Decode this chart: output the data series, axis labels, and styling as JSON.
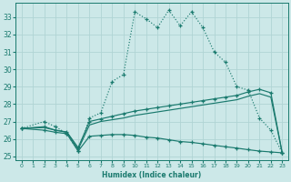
{
  "xlabel": "Humidex (Indice chaleur)",
  "bg_color": "#cce8e8",
  "grid_color": "#b0d4d4",
  "line_color": "#1a7a6e",
  "xlim": [
    -0.5,
    23.5
  ],
  "ylim": [
    24.8,
    33.8
  ],
  "yticks": [
    25,
    26,
    27,
    28,
    29,
    30,
    31,
    32,
    33
  ],
  "xticks": [
    0,
    1,
    2,
    3,
    4,
    5,
    6,
    7,
    8,
    9,
    10,
    11,
    12,
    13,
    14,
    15,
    16,
    17,
    18,
    19,
    20,
    21,
    22,
    23
  ],
  "line1_x": [
    0,
    2,
    3,
    4,
    5,
    6,
    7,
    8,
    9,
    10,
    11,
    12,
    13,
    14,
    15,
    16,
    17,
    18,
    19,
    20,
    21,
    22,
    23
  ],
  "line1_y": [
    26.6,
    27.0,
    26.7,
    26.3,
    25.3,
    27.2,
    27.5,
    29.3,
    29.7,
    33.3,
    32.9,
    32.4,
    33.4,
    32.5,
    33.3,
    32.4,
    31.0,
    30.4,
    29.0,
    28.8,
    27.2,
    26.5,
    25.2
  ],
  "line1_dotted": true,
  "line2_x": [
    0,
    2,
    3,
    4,
    5,
    6,
    7,
    8,
    9,
    10,
    11,
    12,
    13,
    14,
    15,
    16,
    17,
    18,
    19,
    20,
    21,
    22,
    23
  ],
  "line2_y": [
    26.6,
    26.7,
    26.5,
    26.4,
    25.5,
    27.0,
    27.15,
    27.3,
    27.45,
    27.6,
    27.7,
    27.8,
    27.9,
    28.0,
    28.1,
    28.2,
    28.3,
    28.4,
    28.5,
    28.7,
    28.85,
    28.65,
    25.2
  ],
  "line3_x": [
    0,
    2,
    3,
    4,
    5,
    6,
    7,
    8,
    9,
    10,
    11,
    12,
    13,
    14,
    15,
    16,
    17,
    18,
    19,
    20,
    21,
    22,
    23
  ],
  "line3_y": [
    26.6,
    26.65,
    26.5,
    26.38,
    25.4,
    26.8,
    27.0,
    27.1,
    27.2,
    27.35,
    27.45,
    27.55,
    27.65,
    27.75,
    27.85,
    27.95,
    28.05,
    28.15,
    28.25,
    28.45,
    28.6,
    28.4,
    25.2
  ],
  "line4_x": [
    0,
    2,
    3,
    4,
    5,
    6,
    7,
    8,
    9,
    10,
    11,
    12,
    13,
    14,
    15,
    16,
    17,
    18,
    19,
    20,
    21,
    22,
    23
  ],
  "line4_y": [
    26.6,
    26.5,
    26.38,
    26.3,
    25.3,
    26.15,
    26.2,
    26.25,
    26.25,
    26.2,
    26.1,
    26.05,
    25.95,
    25.85,
    25.8,
    25.72,
    25.63,
    25.55,
    25.47,
    25.38,
    25.3,
    25.25,
    25.2
  ]
}
